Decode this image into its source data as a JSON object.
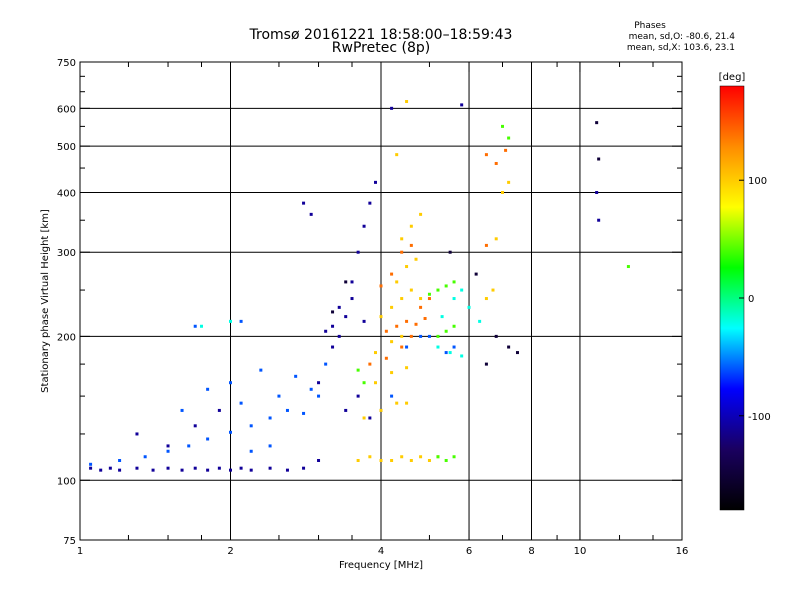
{
  "title_line1": "Tromsø 20161221 18:58:00–18:59:43",
  "title_line2": "RwPretec (8p)",
  "stats": {
    "heading": "Phases",
    "line1": "mean, sd,O: -80.6, 21.4",
    "line2": "mean, sd,X: 103.6, 23.1"
  },
  "chart_data": {
    "type": "scatter",
    "xlabel": "Frequency [MHz]",
    "ylabel": "Stationary phase Virtual Height [km]",
    "x_scale": "log",
    "y_scale": "log",
    "xlim": [
      1,
      16
    ],
    "ylim": [
      75,
      750
    ],
    "x_ticks": [
      1,
      2,
      4,
      8,
      16
    ],
    "x_tick_labels": [
      "1",
      "2",
      "4",
      "6",
      "8",
      "10",
      "16"
    ],
    "x_tick_label_values": [
      1,
      2,
      4,
      6,
      8,
      10,
      16
    ],
    "x_minor_ticks": [
      1.25,
      1.5,
      1.75,
      2.5,
      3,
      3.5,
      5,
      7,
      9,
      12,
      14
    ],
    "x_grid": [
      2,
      4,
      6,
      8,
      10
    ],
    "y_ticks": [
      75,
      100,
      200,
      300,
      400,
      500,
      600,
      750
    ],
    "y_grid": [
      100,
      200,
      300,
      400,
      500,
      600
    ],
    "y_minor_ticks": [
      125,
      150,
      175,
      250,
      350,
      450,
      550,
      650,
      700
    ],
    "grid": true,
    "colorbar": {
      "label": "[deg]",
      "range": [
        -180,
        180
      ],
      "ticks": [
        100,
        0,
        -100
      ],
      "tick_labels": [
        "100",
        "0",
        "-100"
      ],
      "colors": [
        "#ff0000",
        "#ff8c00",
        "#ffff00",
        "#00ff00",
        "#00ffff",
        "#0000ff",
        "#1a0060",
        "#000000"
      ]
    },
    "series": [
      {
        "phase_deg": -110,
        "points": [
          [
            1.05,
            106
          ],
          [
            1.1,
            105
          ],
          [
            1.15,
            106
          ],
          [
            1.2,
            105
          ],
          [
            1.3,
            106
          ],
          [
            1.4,
            105
          ],
          [
            1.5,
            106
          ],
          [
            1.6,
            105
          ],
          [
            1.7,
            106
          ],
          [
            1.8,
            105
          ],
          [
            1.9,
            106
          ],
          [
            2.0,
            105
          ],
          [
            2.1,
            106
          ],
          [
            2.2,
            105
          ],
          [
            2.4,
            106
          ],
          [
            2.6,
            105
          ],
          [
            2.8,
            106
          ],
          [
            3.0,
            110
          ],
          [
            3.1,
            205
          ],
          [
            3.2,
            210
          ],
          [
            3.3,
            200
          ],
          [
            3.4,
            220
          ],
          [
            3.5,
            240
          ],
          [
            3.6,
            300
          ],
          [
            3.7,
            340
          ],
          [
            3.8,
            380
          ],
          [
            3.9,
            420
          ],
          [
            3.2,
            190
          ],
          [
            3.3,
            230
          ],
          [
            3.5,
            260
          ],
          [
            3.7,
            215
          ],
          [
            2.8,
            380
          ],
          [
            2.9,
            360
          ],
          [
            4.2,
            600
          ],
          [
            5.8,
            610
          ],
          [
            10.8,
            400
          ],
          [
            10.9,
            350
          ],
          [
            3.4,
            140
          ],
          [
            3.6,
            150
          ],
          [
            3.8,
            135
          ],
          [
            3.0,
            160
          ],
          [
            1.3,
            125
          ],
          [
            1.5,
            118
          ],
          [
            1.7,
            130
          ],
          [
            1.9,
            140
          ]
        ]
      },
      {
        "phase_deg": -60,
        "points": [
          [
            1.05,
            108
          ],
          [
            1.2,
            110
          ],
          [
            1.35,
            112
          ],
          [
            1.5,
            115
          ],
          [
            1.65,
            118
          ],
          [
            1.8,
            122
          ],
          [
            2.0,
            126
          ],
          [
            2.2,
            130
          ],
          [
            2.4,
            135
          ],
          [
            2.6,
            140
          ],
          [
            2.8,
            138
          ],
          [
            3.0,
            150
          ],
          [
            2.2,
            115
          ],
          [
            2.4,
            118
          ],
          [
            2.5,
            150
          ],
          [
            2.7,
            165
          ],
          [
            2.9,
            155
          ],
          [
            3.1,
            175
          ],
          [
            1.6,
            140
          ],
          [
            1.8,
            155
          ],
          [
            2.0,
            160
          ],
          [
            2.1,
            145
          ],
          [
            2.3,
            170
          ],
          [
            4.5,
            190
          ],
          [
            4.8,
            200
          ],
          [
            5.0,
            200
          ],
          [
            5.4,
            185
          ],
          [
            5.6,
            190
          ],
          [
            1.7,
            210
          ],
          [
            2.1,
            215
          ],
          [
            4.0,
            140
          ],
          [
            4.2,
            150
          ]
        ]
      },
      {
        "phase_deg": 100,
        "points": [
          [
            3.6,
            110
          ],
          [
            3.8,
            112
          ],
          [
            4.0,
            110
          ],
          [
            4.2,
            110
          ],
          [
            4.4,
            112
          ],
          [
            4.6,
            110
          ],
          [
            4.8,
            112
          ],
          [
            5.0,
            110
          ],
          [
            5.2,
            112
          ],
          [
            3.7,
            135
          ],
          [
            4.0,
            140
          ],
          [
            4.3,
            145
          ],
          [
            4.5,
            145
          ],
          [
            3.9,
            160
          ],
          [
            4.2,
            168
          ],
          [
            4.5,
            172
          ],
          [
            3.9,
            185
          ],
          [
            4.2,
            195
          ],
          [
            4.4,
            200
          ],
          [
            4.0,
            220
          ],
          [
            4.2,
            230
          ],
          [
            4.4,
            240
          ],
          [
            4.6,
            250
          ],
          [
            4.8,
            240
          ],
          [
            4.3,
            260
          ],
          [
            4.5,
            280
          ],
          [
            4.7,
            290
          ],
          [
            4.4,
            320
          ],
          [
            4.6,
            340
          ],
          [
            4.8,
            360
          ],
          [
            6.5,
            240
          ],
          [
            6.7,
            250
          ],
          [
            6.8,
            320
          ],
          [
            7.0,
            400
          ],
          [
            7.2,
            420
          ],
          [
            4.3,
            480
          ],
          [
            4.5,
            620
          ]
        ]
      },
      {
        "phase_deg": 140,
        "points": [
          [
            4.1,
            205
          ],
          [
            4.3,
            210
          ],
          [
            4.5,
            215
          ],
          [
            4.7,
            212
          ],
          [
            4.9,
            218
          ],
          [
            3.8,
            175
          ],
          [
            4.1,
            180
          ],
          [
            4.4,
            190
          ],
          [
            4.6,
            200
          ],
          [
            4.0,
            255
          ],
          [
            4.2,
            270
          ],
          [
            4.4,
            300
          ],
          [
            4.6,
            310
          ],
          [
            6.5,
            480
          ],
          [
            6.8,
            460
          ],
          [
            7.1,
            490
          ],
          [
            6.5,
            310
          ],
          [
            4.8,
            230
          ],
          [
            5.0,
            240
          ]
        ]
      },
      {
        "phase_deg": 40,
        "points": [
          [
            5.2,
            112
          ],
          [
            5.4,
            110
          ],
          [
            5.6,
            112
          ],
          [
            5.2,
            200
          ],
          [
            5.4,
            205
          ],
          [
            5.6,
            210
          ],
          [
            5.0,
            245
          ],
          [
            5.2,
            250
          ],
          [
            5.4,
            255
          ],
          [
            5.6,
            260
          ],
          [
            7.0,
            550
          ],
          [
            7.2,
            520
          ],
          [
            12.5,
            280
          ],
          [
            3.7,
            160
          ],
          [
            3.6,
            170
          ]
        ]
      },
      {
        "phase_deg": -150,
        "points": [
          [
            6.8,
            200
          ],
          [
            7.2,
            190
          ],
          [
            7.5,
            185
          ],
          [
            6.5,
            175
          ],
          [
            10.8,
            560
          ],
          [
            10.9,
            470
          ],
          [
            3.2,
            225
          ],
          [
            3.4,
            260
          ],
          [
            5.5,
            300
          ],
          [
            6.2,
            270
          ]
        ]
      },
      {
        "phase_deg": -20,
        "points": [
          [
            5.2,
            190
          ],
          [
            5.5,
            185
          ],
          [
            5.8,
            182
          ],
          [
            5.3,
            220
          ],
          [
            5.6,
            240
          ],
          [
            5.8,
            250
          ],
          [
            1.75,
            210
          ],
          [
            2.0,
            215
          ],
          [
            6.0,
            230
          ],
          [
            6.3,
            215
          ]
        ]
      }
    ]
  }
}
